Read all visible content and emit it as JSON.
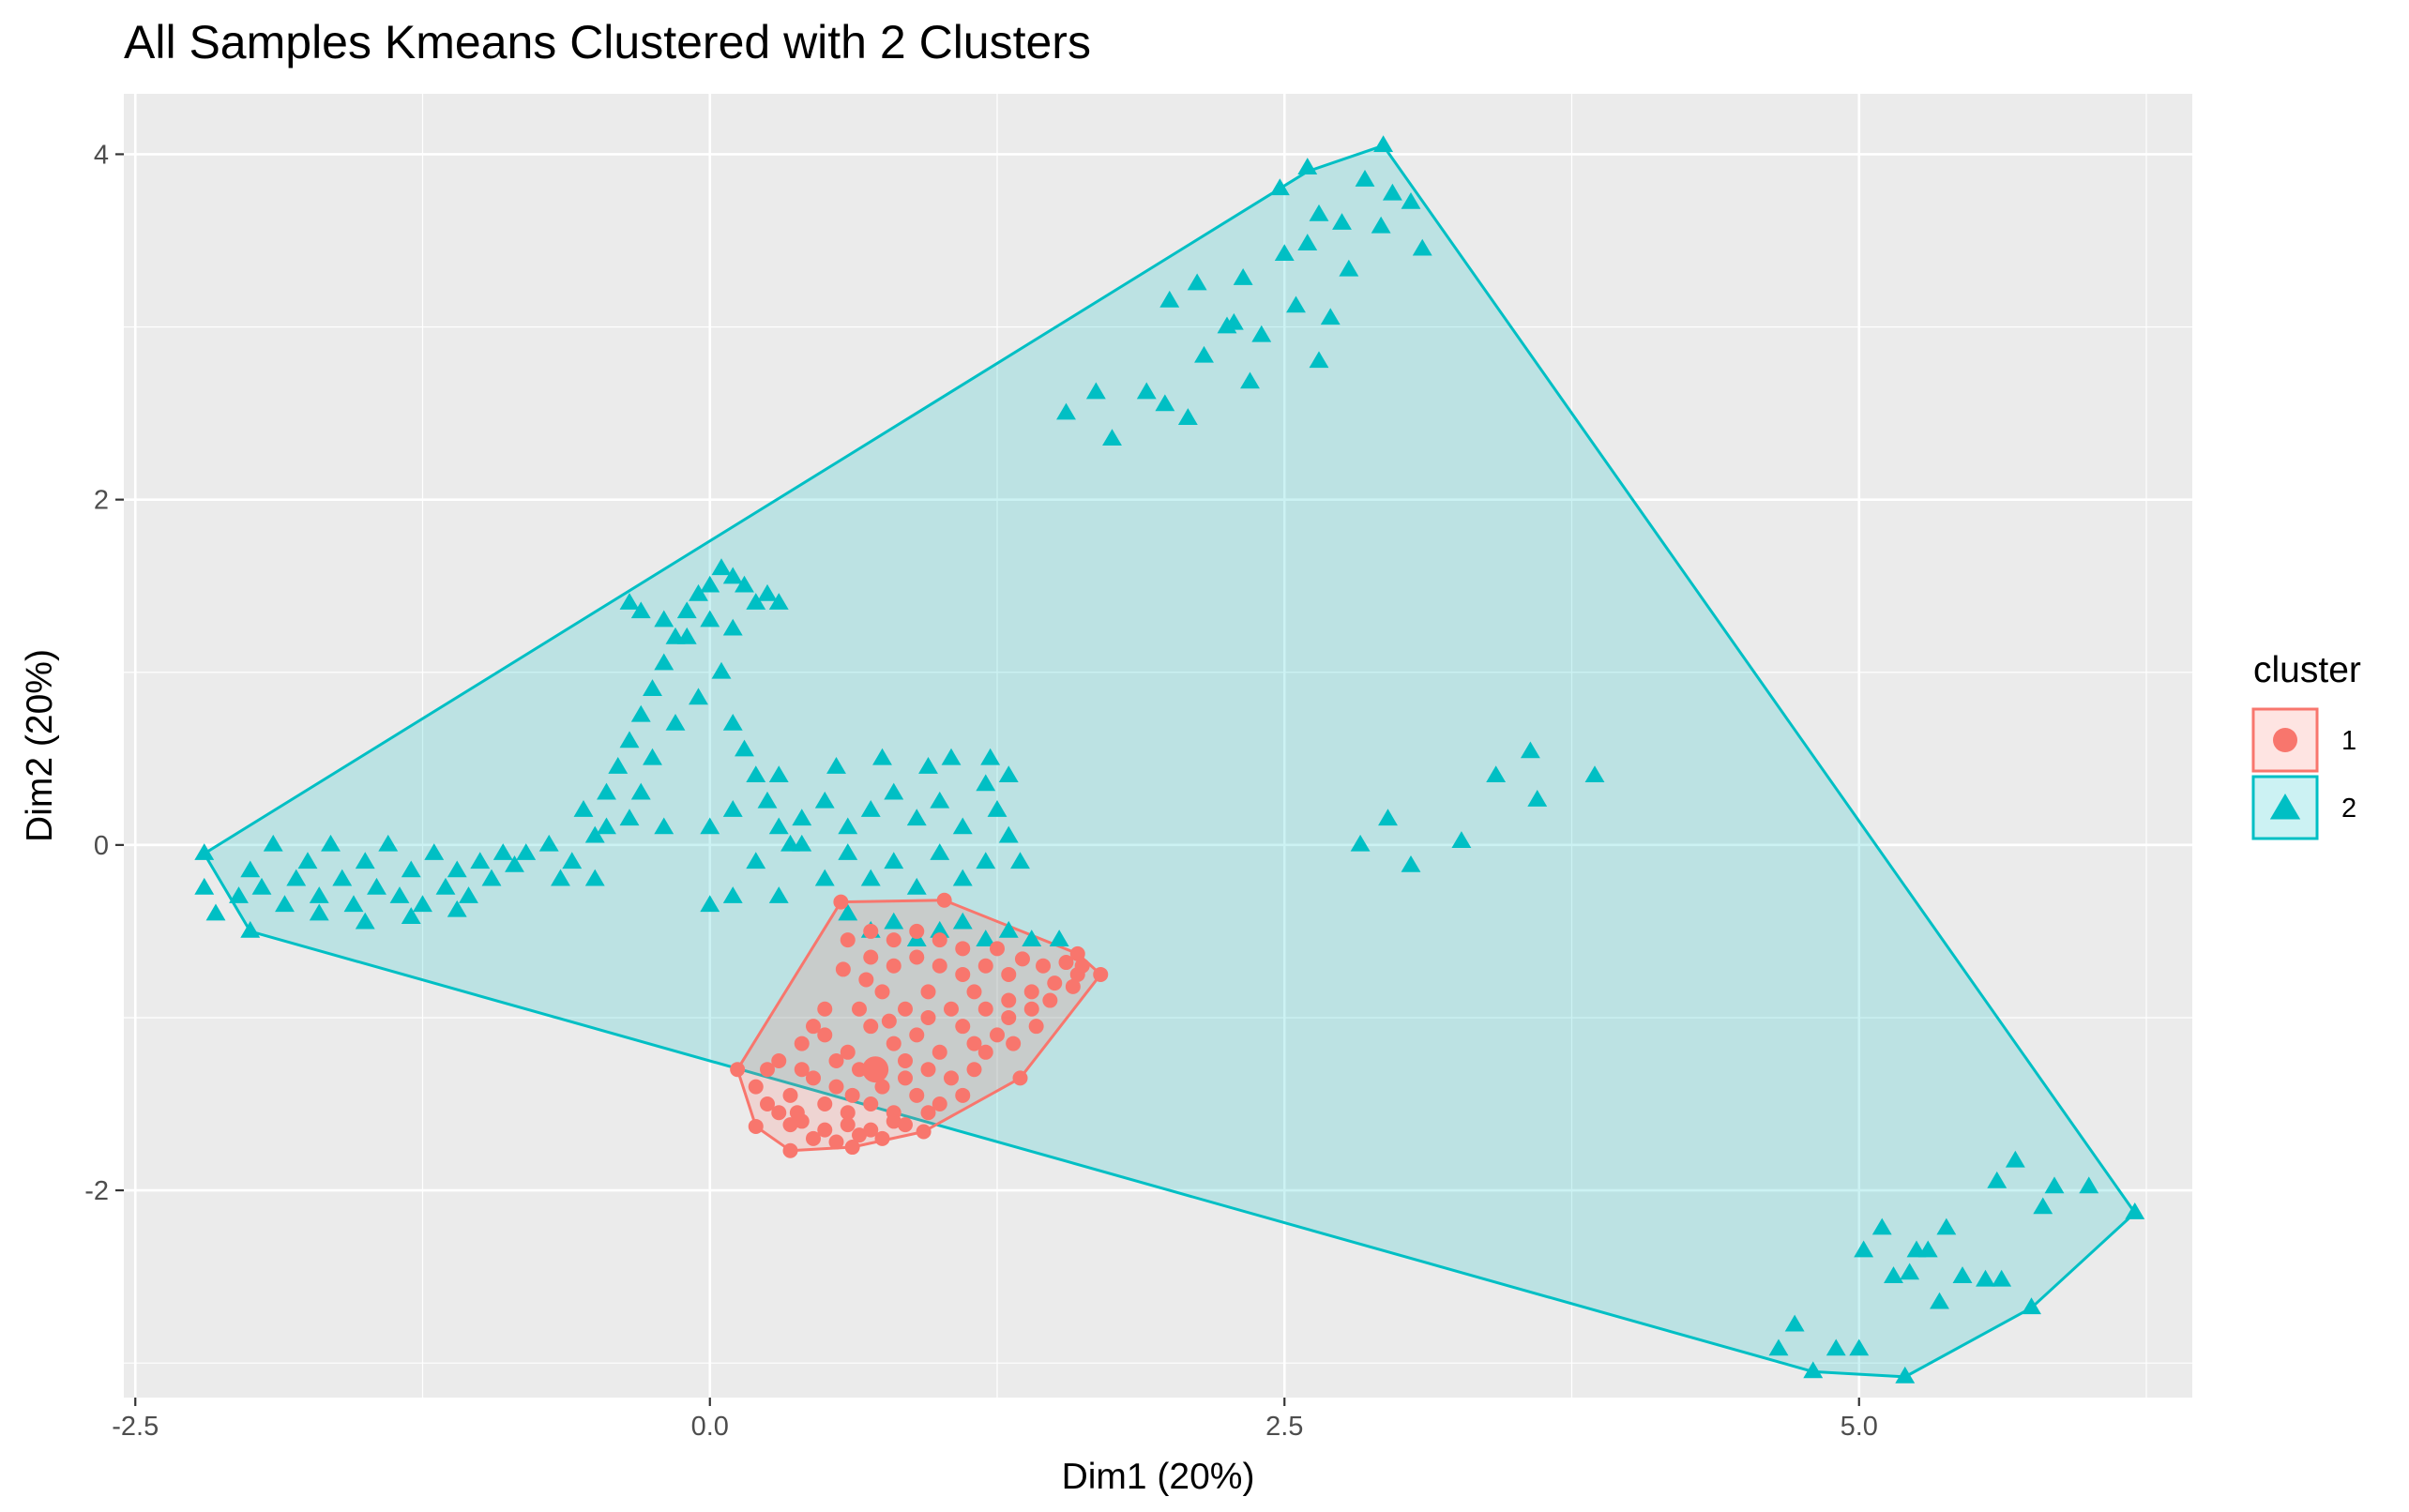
{
  "chart_data": {
    "type": "scatter",
    "title": "All Samples Kmeans Clustered with 2 Clusters",
    "xlabel": "Dim1 (20%)",
    "ylabel": "Dim2 (20%)",
    "xlim": [
      -2.55,
      6.45
    ],
    "ylim": [
      -3.2,
      4.35
    ],
    "x_ticks": [
      -2.5,
      0.0,
      2.5,
      5.0
    ],
    "x_tick_labels": [
      "-2.5",
      "0.0",
      "2.5",
      "5.0"
    ],
    "y_ticks": [
      -2,
      0,
      2,
      4
    ],
    "y_tick_labels": [
      "-2",
      "0",
      "2",
      "4"
    ],
    "grid": true,
    "panel_background": "#EBEBEB",
    "grid_color": "#FFFFFF",
    "legend": {
      "title": "cluster",
      "placement": "right",
      "entries": [
        {
          "label": "1",
          "shape": "circle"
        },
        {
          "label": "2",
          "shape": "triangle"
        }
      ]
    },
    "series": [
      {
        "name": "1",
        "marker": "circle",
        "color": "#F8766D",
        "fill": "#F8766D",
        "center": [
          0.72,
          -1.3
        ],
        "hull": [
          [
            0.12,
            -1.3
          ],
          [
            0.2,
            -1.63
          ],
          [
            0.35,
            -1.77
          ],
          [
            0.62,
            -1.75
          ],
          [
            0.93,
            -1.66
          ],
          [
            1.35,
            -1.35
          ],
          [
            1.7,
            -0.75
          ],
          [
            1.6,
            -0.63
          ],
          [
            1.02,
            -0.32
          ],
          [
            0.57,
            -0.33
          ]
        ],
        "points": [
          [
            0.12,
            -1.3
          ],
          [
            0.2,
            -1.63
          ],
          [
            0.35,
            -1.77
          ],
          [
            0.62,
            -1.75
          ],
          [
            0.93,
            -1.66
          ],
          [
            1.35,
            -1.35
          ],
          [
            1.7,
            -0.75
          ],
          [
            1.6,
            -0.63
          ],
          [
            1.02,
            -0.32
          ],
          [
            0.57,
            -0.33
          ],
          [
            0.3,
            -1.25
          ],
          [
            0.4,
            -1.15
          ],
          [
            0.5,
            -1.1
          ],
          [
            0.6,
            -1.2
          ],
          [
            0.7,
            -1.05
          ],
          [
            0.8,
            -1.15
          ],
          [
            0.9,
            -1.1
          ],
          [
            1.0,
            -1.2
          ],
          [
            0.45,
            -1.35
          ],
          [
            0.55,
            -1.4
          ],
          [
            0.65,
            -1.3
          ],
          [
            0.75,
            -1.4
          ],
          [
            0.85,
            -1.35
          ],
          [
            0.95,
            -1.3
          ],
          [
            1.05,
            -1.35
          ],
          [
            1.15,
            -1.3
          ],
          [
            0.35,
            -1.45
          ],
          [
            0.5,
            -1.5
          ],
          [
            0.6,
            -1.55
          ],
          [
            0.7,
            -1.5
          ],
          [
            0.8,
            -1.55
          ],
          [
            0.9,
            -1.45
          ],
          [
            1.0,
            -1.5
          ],
          [
            1.1,
            -1.45
          ],
          [
            0.3,
            -1.55
          ],
          [
            0.4,
            -1.6
          ],
          [
            0.5,
            -1.65
          ],
          [
            0.6,
            -1.62
          ],
          [
            0.7,
            -1.65
          ],
          [
            0.8,
            -1.6
          ],
          [
            0.25,
            -1.5
          ],
          [
            0.35,
            -1.62
          ],
          [
            0.45,
            -1.7
          ],
          [
            0.55,
            -1.72
          ],
          [
            0.65,
            -1.68
          ],
          [
            0.75,
            -1.7
          ],
          [
            0.85,
            -1.62
          ],
          [
            0.95,
            -1.55
          ],
          [
            1.2,
            -1.2
          ],
          [
            1.25,
            -1.1
          ],
          [
            1.1,
            -1.05
          ],
          [
            1.2,
            -0.95
          ],
          [
            1.3,
            -0.9
          ],
          [
            1.4,
            -0.85
          ],
          [
            1.5,
            -0.8
          ],
          [
            1.6,
            -0.75
          ],
          [
            1.3,
            -1.0
          ],
          [
            1.4,
            -0.95
          ],
          [
            1.15,
            -0.85
          ],
          [
            1.05,
            -0.95
          ],
          [
            0.95,
            -0.85
          ],
          [
            0.85,
            -0.95
          ],
          [
            0.75,
            -0.85
          ],
          [
            0.65,
            -0.95
          ],
          [
            1.0,
            -0.7
          ],
          [
            1.1,
            -0.75
          ],
          [
            1.2,
            -0.7
          ],
          [
            1.3,
            -0.75
          ],
          [
            1.45,
            -0.7
          ],
          [
            1.55,
            -0.68
          ],
          [
            0.9,
            -0.65
          ],
          [
            0.8,
            -0.7
          ],
          [
            0.7,
            -0.65
          ],
          [
            0.6,
            -0.55
          ],
          [
            0.7,
            -0.5
          ],
          [
            0.8,
            -0.55
          ],
          [
            0.9,
            -0.5
          ],
          [
            1.0,
            -0.55
          ],
          [
            1.1,
            -0.6
          ],
          [
            1.25,
            -0.6
          ],
          [
            0.2,
            -1.4
          ],
          [
            0.25,
            -1.3
          ],
          [
            0.4,
            -1.3
          ],
          [
            0.55,
            -1.25
          ],
          [
            0.85,
            -1.25
          ],
          [
            1.15,
            -1.15
          ],
          [
            0.5,
            -0.95
          ],
          [
            0.45,
            -1.05
          ],
          [
            0.38,
            -1.55
          ],
          [
            0.62,
            -1.45
          ],
          [
            1.48,
            -0.9
          ],
          [
            1.58,
            -0.82
          ],
          [
            1.42,
            -1.05
          ],
          [
            1.32,
            -1.15
          ],
          [
            0.95,
            -1.0
          ],
          [
            0.78,
            -1.02
          ],
          [
            0.68,
            -0.78
          ],
          [
            0.58,
            -0.72
          ],
          [
            1.62,
            -0.7
          ],
          [
            1.36,
            -0.66
          ]
        ]
      },
      {
        "name": "2",
        "marker": "triangle",
        "color": "#00BFC4",
        "fill": "#00BFC4",
        "hull": [
          [
            -2.2,
            -0.05
          ],
          [
            -2.0,
            -0.5
          ],
          [
            4.8,
            -3.05
          ],
          [
            5.2,
            -3.08
          ],
          [
            5.75,
            -2.68
          ],
          [
            6.2,
            -2.13
          ],
          [
            2.93,
            4.05
          ],
          [
            2.6,
            3.9
          ]
        ],
        "points": [
          [
            -2.2,
            -0.05
          ],
          [
            -2.0,
            -0.5
          ],
          [
            -2.2,
            -0.25
          ],
          [
            -2.15,
            -0.4
          ],
          [
            -2.05,
            -0.3
          ],
          [
            -2.0,
            -0.15
          ],
          [
            -1.95,
            -0.25
          ],
          [
            -1.9,
            0.0
          ],
          [
            -1.85,
            -0.35
          ],
          [
            -1.8,
            -0.2
          ],
          [
            -1.75,
            -0.1
          ],
          [
            -1.7,
            -0.3
          ],
          [
            -1.65,
            0.0
          ],
          [
            -1.6,
            -0.2
          ],
          [
            -1.55,
            -0.35
          ],
          [
            -1.5,
            -0.1
          ],
          [
            -1.45,
            -0.25
          ],
          [
            -1.4,
            0.0
          ],
          [
            -1.35,
            -0.3
          ],
          [
            -1.3,
            -0.15
          ],
          [
            -1.25,
            -0.35
          ],
          [
            -1.2,
            -0.05
          ],
          [
            -1.15,
            -0.25
          ],
          [
            -1.1,
            -0.15
          ],
          [
            -1.05,
            -0.3
          ],
          [
            -1.0,
            -0.1
          ],
          [
            -0.95,
            -0.2
          ],
          [
            -0.9,
            -0.05
          ],
          [
            -1.7,
            -0.4
          ],
          [
            -1.5,
            -0.45
          ],
          [
            -1.3,
            -0.42
          ],
          [
            -1.1,
            -0.38
          ],
          [
            -0.85,
            -0.12
          ],
          [
            -0.8,
            -0.05
          ],
          [
            -0.7,
            0.0
          ],
          [
            -0.6,
            -0.1
          ],
          [
            -0.5,
            0.05
          ],
          [
            -0.55,
            0.2
          ],
          [
            -0.45,
            0.3
          ],
          [
            -0.4,
            0.45
          ],
          [
            -0.35,
            0.6
          ],
          [
            -0.3,
            0.75
          ],
          [
            -0.25,
            0.9
          ],
          [
            -0.2,
            1.05
          ],
          [
            -0.15,
            1.2
          ],
          [
            -0.1,
            1.35
          ],
          [
            -0.05,
            1.45
          ],
          [
            0.0,
            1.5
          ],
          [
            0.05,
            1.6
          ],
          [
            0.1,
            1.55
          ],
          [
            0.15,
            1.5
          ],
          [
            0.2,
            1.4
          ],
          [
            0.25,
            1.45
          ],
          [
            0.3,
            1.4
          ],
          [
            0.0,
            1.3
          ],
          [
            -0.1,
            1.2
          ],
          [
            0.1,
            1.25
          ],
          [
            -0.2,
            1.3
          ],
          [
            -0.3,
            1.35
          ],
          [
            -0.35,
            1.4
          ],
          [
            0.05,
            1.0
          ],
          [
            -0.05,
            0.85
          ],
          [
            0.1,
            0.7
          ],
          [
            0.15,
            0.55
          ],
          [
            0.2,
            0.4
          ],
          [
            0.25,
            0.25
          ],
          [
            0.3,
            0.1
          ],
          [
            0.35,
            0.0
          ],
          [
            -0.15,
            0.7
          ],
          [
            -0.25,
            0.5
          ],
          [
            -0.3,
            0.3
          ],
          [
            -0.35,
            0.15
          ],
          [
            -0.45,
            0.1
          ],
          [
            -0.2,
            0.1
          ],
          [
            0.0,
            0.1
          ],
          [
            0.1,
            0.2
          ],
          [
            0.4,
            0.15
          ],
          [
            0.5,
            0.25
          ],
          [
            0.6,
            0.1
          ],
          [
            0.7,
            0.2
          ],
          [
            0.8,
            0.3
          ],
          [
            0.9,
            0.15
          ],
          [
            1.0,
            0.25
          ],
          [
            1.1,
            0.1
          ],
          [
            1.2,
            0.35
          ],
          [
            1.25,
            0.2
          ],
          [
            1.3,
            0.05
          ],
          [
            0.55,
            0.45
          ],
          [
            0.75,
            0.5
          ],
          [
            0.95,
            0.45
          ],
          [
            1.05,
            0.5
          ],
          [
            1.22,
            0.5
          ],
          [
            0.4,
            0.0
          ],
          [
            0.6,
            -0.05
          ],
          [
            0.8,
            -0.1
          ],
          [
            1.0,
            -0.05
          ],
          [
            1.2,
            -0.1
          ],
          [
            1.35,
            -0.1
          ],
          [
            1.3,
            0.4
          ],
          [
            0.3,
            0.4
          ],
          [
            0.2,
            -0.1
          ],
          [
            0.5,
            -0.2
          ],
          [
            0.7,
            -0.2
          ],
          [
            0.9,
            -0.25
          ],
          [
            1.1,
            -0.2
          ],
          [
            0.1,
            -0.3
          ],
          [
            0.0,
            -0.35
          ],
          [
            0.3,
            -0.3
          ],
          [
            -0.65,
            -0.2
          ],
          [
            -0.5,
            -0.2
          ],
          [
            0.6,
            -0.4
          ],
          [
            0.7,
            -0.5
          ],
          [
            0.8,
            -0.45
          ],
          [
            0.9,
            -0.55
          ],
          [
            1.0,
            -0.5
          ],
          [
            1.1,
            -0.45
          ],
          [
            1.2,
            -0.55
          ],
          [
            1.3,
            -0.5
          ],
          [
            1.4,
            -0.55
          ],
          [
            1.52,
            -0.55
          ],
          [
            1.55,
            2.5
          ],
          [
            1.75,
            2.35
          ],
          [
            1.68,
            2.62
          ],
          [
            1.9,
            2.62
          ],
          [
            2.0,
            3.15
          ],
          [
            2.08,
            2.47
          ],
          [
            2.12,
            3.25
          ],
          [
            2.15,
            2.83
          ],
          [
            2.25,
            3.0
          ],
          [
            2.32,
            3.28
          ],
          [
            2.35,
            2.68
          ],
          [
            2.4,
            2.95
          ],
          [
            2.48,
            3.8
          ],
          [
            2.5,
            3.42
          ],
          [
            2.55,
            3.12
          ],
          [
            2.6,
            3.92
          ],
          [
            2.6,
            3.48
          ],
          [
            2.65,
            2.8
          ],
          [
            2.65,
            3.65
          ],
          [
            2.75,
            3.6
          ],
          [
            2.78,
            3.33
          ],
          [
            2.85,
            3.85
          ],
          [
            2.93,
            4.05
          ],
          [
            2.92,
            3.58
          ],
          [
            2.97,
            3.77
          ],
          [
            3.05,
            3.72
          ],
          [
            3.1,
            3.45
          ],
          [
            2.7,
            3.05
          ],
          [
            1.98,
            2.55
          ],
          [
            2.28,
            3.02
          ],
          [
            2.83,
            0.0
          ],
          [
            2.95,
            0.15
          ],
          [
            3.05,
            -0.12
          ],
          [
            3.27,
            0.02
          ],
          [
            3.42,
            0.4
          ],
          [
            3.57,
            0.54
          ],
          [
            3.6,
            0.26
          ],
          [
            3.85,
            0.4
          ],
          [
            4.65,
            -2.92
          ],
          [
            4.72,
            -2.78
          ],
          [
            4.8,
            -3.05
          ],
          [
            4.9,
            -2.92
          ],
          [
            5.0,
            -2.92
          ],
          [
            5.02,
            -2.35
          ],
          [
            5.1,
            -2.22
          ],
          [
            5.15,
            -2.5
          ],
          [
            5.2,
            -3.08
          ],
          [
            5.22,
            -2.48
          ],
          [
            5.25,
            -2.35
          ],
          [
            5.3,
            -2.35
          ],
          [
            5.35,
            -2.65
          ],
          [
            5.38,
            -2.22
          ],
          [
            5.45,
            -2.5
          ],
          [
            5.55,
            -2.52
          ],
          [
            5.6,
            -1.95
          ],
          [
            5.62,
            -2.52
          ],
          [
            5.68,
            -1.83
          ],
          [
            5.75,
            -2.68
          ],
          [
            5.8,
            -2.1
          ],
          [
            5.85,
            -1.98
          ],
          [
            6.0,
            -1.98
          ],
          [
            6.2,
            -2.13
          ]
        ]
      }
    ]
  }
}
